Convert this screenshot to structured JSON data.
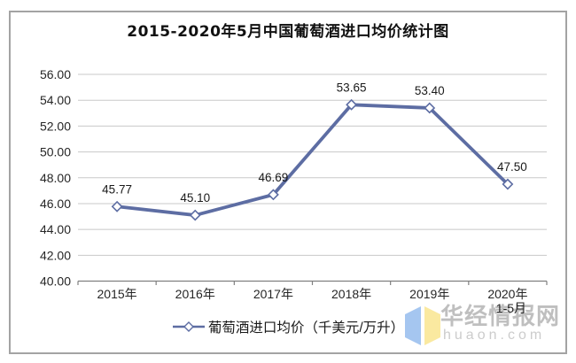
{
  "title": "2015-2020年5月中国葡萄酒进口均价统计图",
  "chart_data": {
    "type": "line",
    "title": "2015-2020年5月中国葡萄酒进口均价统计图",
    "categories": [
      "2015年",
      "2016年",
      "2017年",
      "2018年",
      "2019年",
      "2020年"
    ],
    "category_sublabels": [
      "",
      "",
      "",
      "",
      "",
      "1-5月"
    ],
    "series": [
      {
        "name": "葡萄酒进口均价（千美元/万升）",
        "values": [
          45.77,
          45.1,
          46.69,
          53.65,
          53.4,
          47.5
        ]
      }
    ],
    "data_labels": [
      "45.77",
      "45.10",
      "46.69",
      "53.65",
      "53.40",
      "47.50"
    ],
    "ylim": [
      40,
      56
    ],
    "ytick_step": 2,
    "ytick_labels": [
      "40.00",
      "42.00",
      "44.00",
      "46.00",
      "48.00",
      "50.00",
      "52.00",
      "54.00",
      "56.00"
    ],
    "grid": "horizontal",
    "legend_position": "bottom",
    "marker": "diamond-open",
    "line_color": "#5d6da3",
    "marker_fill": "#ffffff",
    "grid_color": "#c8c8c8",
    "axis_color": "#808080",
    "tick_label_color": "#262626",
    "data_label_color": "#1a1a1a"
  },
  "legend": {
    "label": "葡萄酒进口均价（千美元/万升）"
  },
  "watermark": {
    "name": "华经情报网",
    "domain": "huaon.com",
    "icon_left_color": "#a5c6f0",
    "icon_right_color": "#fae9a0"
  }
}
